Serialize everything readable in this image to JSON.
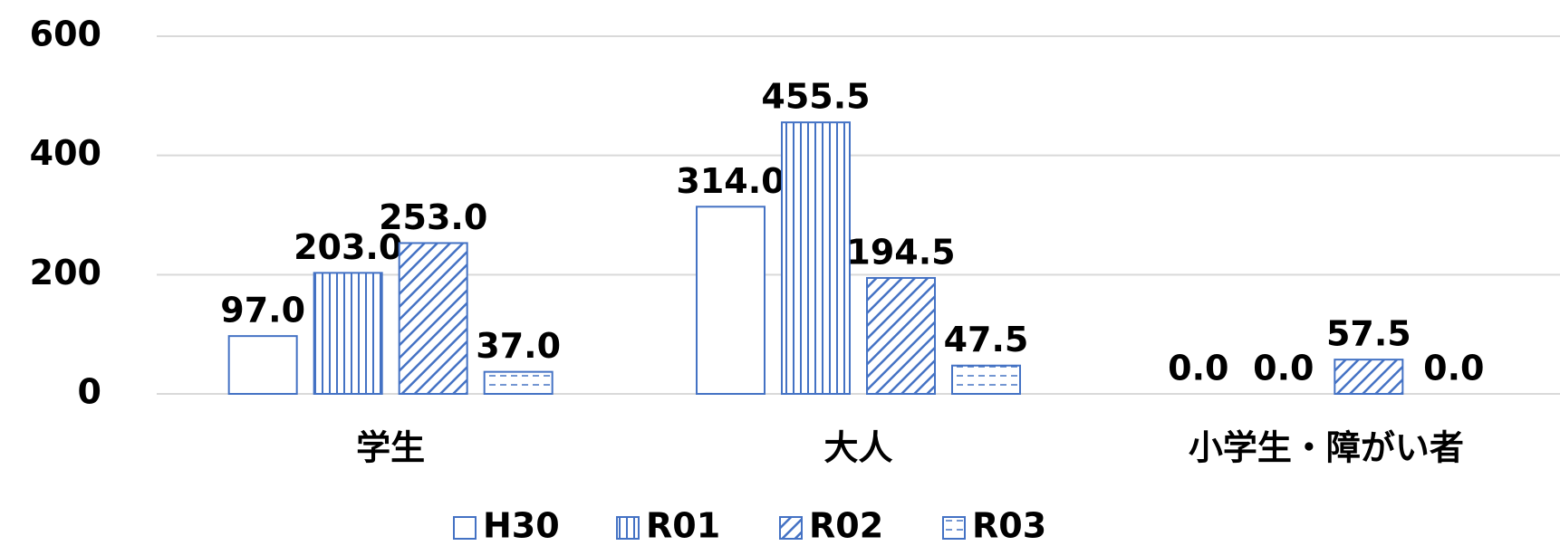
{
  "chart_data": {
    "type": "bar",
    "categories": [
      "学生",
      "大人",
      "小学生・障がい者"
    ],
    "series": [
      {
        "name": "H30",
        "color": "#4472c4",
        "pattern": "none",
        "values": [
          97.0,
          314.0,
          0.0
        ],
        "value_labels": [
          "97.0",
          "314.0",
          "0.0"
        ]
      },
      {
        "name": "R01",
        "color": "#4472c4",
        "pattern": "vertical",
        "values": [
          203.0,
          455.5,
          0.0
        ],
        "value_labels": [
          "203.0",
          "455.5",
          "0.0"
        ]
      },
      {
        "name": "R02",
        "color": "#4472c4",
        "pattern": "diagonal",
        "values": [
          253.0,
          194.5,
          57.5
        ],
        "value_labels": [
          "253.0",
          "194.5",
          "57.5"
        ]
      },
      {
        "name": "R03",
        "color": "#4472c4",
        "pattern": "dashed",
        "values": [
          37.0,
          47.5,
          0.0
        ],
        "value_labels": [
          "37.0",
          "47.5",
          "0.0"
        ]
      }
    ],
    "ylim": [
      0,
      600
    ],
    "yticks": [
      0,
      200,
      400,
      600
    ],
    "grid": true,
    "legend": "bottom"
  }
}
